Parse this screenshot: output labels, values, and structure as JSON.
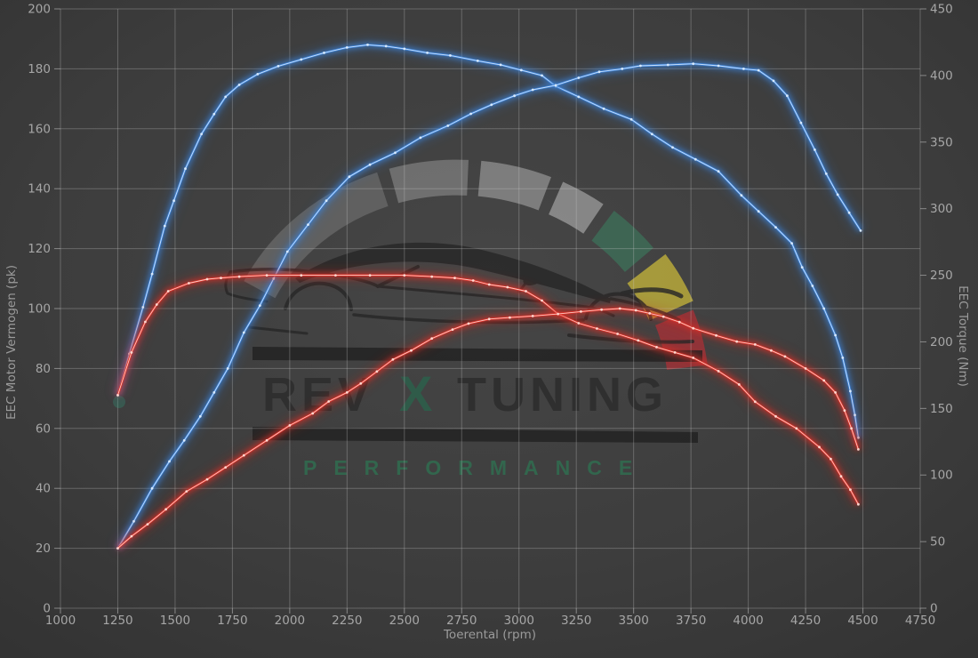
{
  "watermark": {
    "brand_rev": "REV",
    "brand_x": "X",
    "brand_tuning": "TUNING",
    "brand_sub": "PERFORMANCE"
  },
  "colors": {
    "background": "#3d3d3d",
    "grid": "#c8c8c8",
    "tick_text": "#a6a6a6",
    "blue": "#3f86dd",
    "blue_glow": "#2f6fc0",
    "blue_core": "#d9ebff",
    "red": "#e0322a",
    "red_glow": "#c02018",
    "red_core": "#ffdad3",
    "gauge_green": "#3d7159",
    "gauge_yellow": "#c8b73a",
    "gauge_red": "#aa3138",
    "logo_text": "#2d2d2d",
    "logo_green": "#2f7052"
  },
  "chart_data": {
    "type": "line",
    "title": "",
    "grid": true,
    "legend": "none",
    "axes": {
      "x": {
        "label": "Toerental (rpm)",
        "min": 1000,
        "max": 4750,
        "step": 250
      },
      "y_left": {
        "label": "EEC Motor Vermogen (pk)",
        "min": 0,
        "max": 200,
        "step": 20
      },
      "y_right": {
        "label": "EEC Torque (Nm)",
        "min": 0,
        "max": 450,
        "step": 50
      }
    },
    "series": [
      {
        "name": "tuned-torque-nm",
        "axis": "right",
        "color": "blue",
        "unit": "Nm",
        "points": [
          [
            1250,
            160
          ],
          [
            1300,
            191
          ],
          [
            1360,
            226
          ],
          [
            1400,
            251
          ],
          [
            1455,
            287
          ],
          [
            1495,
            306
          ],
          [
            1545,
            330
          ],
          [
            1615,
            356
          ],
          [
            1670,
            371
          ],
          [
            1720,
            384
          ],
          [
            1780,
            393
          ],
          [
            1860,
            401
          ],
          [
            1950,
            407
          ],
          [
            2050,
            412
          ],
          [
            2150,
            417
          ],
          [
            2250,
            421
          ],
          [
            2340,
            423
          ],
          [
            2420,
            422
          ],
          [
            2500,
            420
          ],
          [
            2600,
            417
          ],
          [
            2700,
            415
          ],
          [
            2820,
            411
          ],
          [
            2920,
            408
          ],
          [
            3010,
            404
          ],
          [
            3100,
            400
          ],
          [
            3160,
            392
          ],
          [
            3260,
            384
          ],
          [
            3370,
            375
          ],
          [
            3490,
            367
          ],
          [
            3580,
            356
          ],
          [
            3670,
            346
          ],
          [
            3770,
            337
          ],
          [
            3870,
            328
          ],
          [
            3970,
            310
          ],
          [
            4045,
            298
          ],
          [
            4120,
            286
          ],
          [
            4190,
            274
          ],
          [
            4235,
            256
          ],
          [
            4280,
            242
          ],
          [
            4330,
            225
          ],
          [
            4380,
            205
          ],
          [
            4412,
            188
          ],
          [
            4445,
            163
          ],
          [
            4465,
            145
          ],
          [
            4480,
            128
          ]
        ]
      },
      {
        "name": "tuned-power-pk",
        "axis": "left",
        "color": "blue",
        "unit": "pk",
        "points": [
          [
            1250,
            20
          ],
          [
            1320,
            29
          ],
          [
            1400,
            40
          ],
          [
            1475,
            49
          ],
          [
            1540,
            56
          ],
          [
            1610,
            64
          ],
          [
            1670,
            72
          ],
          [
            1730,
            80
          ],
          [
            1800,
            92
          ],
          [
            1870,
            101
          ],
          [
            1930,
            110
          ],
          [
            1990,
            119
          ],
          [
            2080,
            128
          ],
          [
            2160,
            136
          ],
          [
            2260,
            144
          ],
          [
            2350,
            148
          ],
          [
            2460,
            152
          ],
          [
            2570,
            157
          ],
          [
            2690,
            161
          ],
          [
            2790,
            165
          ],
          [
            2880,
            168
          ],
          [
            2980,
            171
          ],
          [
            3060,
            173
          ],
          [
            3160,
            174.5
          ],
          [
            3260,
            177
          ],
          [
            3350,
            179
          ],
          [
            3450,
            180
          ],
          [
            3530,
            181
          ],
          [
            3650,
            181.3
          ],
          [
            3760,
            181.7
          ],
          [
            3870,
            181
          ],
          [
            3980,
            180
          ],
          [
            4045,
            179.5
          ],
          [
            4110,
            176
          ],
          [
            4170,
            171
          ],
          [
            4230,
            162
          ],
          [
            4290,
            153
          ],
          [
            4340,
            145
          ],
          [
            4390,
            138
          ],
          [
            4440,
            132
          ],
          [
            4490,
            126
          ]
        ]
      },
      {
        "name": "stock-torque-nm",
        "axis": "right",
        "color": "red",
        "unit": "Nm",
        "points": [
          [
            1250,
            160
          ],
          [
            1310,
            192
          ],
          [
            1370,
            215
          ],
          [
            1420,
            228
          ],
          [
            1470,
            238
          ],
          [
            1560,
            244
          ],
          [
            1640,
            247
          ],
          [
            1700,
            248
          ],
          [
            1780,
            249
          ],
          [
            1900,
            250
          ],
          [
            2050,
            250
          ],
          [
            2200,
            250
          ],
          [
            2350,
            250
          ],
          [
            2500,
            250
          ],
          [
            2620,
            249
          ],
          [
            2720,
            248
          ],
          [
            2800,
            246
          ],
          [
            2870,
            243
          ],
          [
            2950,
            241
          ],
          [
            3030,
            238
          ],
          [
            3100,
            231
          ],
          [
            3170,
            221
          ],
          [
            3260,
            214
          ],
          [
            3340,
            210
          ],
          [
            3430,
            206
          ],
          [
            3520,
            201
          ],
          [
            3600,
            196
          ],
          [
            3680,
            192
          ],
          [
            3760,
            188
          ],
          [
            3870,
            178
          ],
          [
            3960,
            168
          ],
          [
            4030,
            155
          ],
          [
            4120,
            144
          ],
          [
            4210,
            135
          ],
          [
            4310,
            121
          ],
          [
            4360,
            112
          ],
          [
            4405,
            99
          ],
          [
            4445,
            89
          ],
          [
            4480,
            78
          ]
        ]
      },
      {
        "name": "stock-power-pk",
        "axis": "left",
        "color": "red",
        "unit": "pk",
        "points": [
          [
            1250,
            20
          ],
          [
            1310,
            24
          ],
          [
            1380,
            28
          ],
          [
            1460,
            33
          ],
          [
            1550,
            39
          ],
          [
            1640,
            43
          ],
          [
            1720,
            47
          ],
          [
            1800,
            51
          ],
          [
            1900,
            56
          ],
          [
            2000,
            61
          ],
          [
            2100,
            65
          ],
          [
            2170,
            69
          ],
          [
            2250,
            72
          ],
          [
            2310,
            75
          ],
          [
            2380,
            79
          ],
          [
            2450,
            83
          ],
          [
            2530,
            86
          ],
          [
            2620,
            90
          ],
          [
            2710,
            93
          ],
          [
            2780,
            95
          ],
          [
            2870,
            96.5
          ],
          [
            2960,
            97
          ],
          [
            3060,
            97.5
          ],
          [
            3170,
            98.2
          ],
          [
            3270,
            99
          ],
          [
            3360,
            99.6
          ],
          [
            3440,
            100
          ],
          [
            3510,
            99.4
          ],
          [
            3570,
            98.4
          ],
          [
            3630,
            97.3
          ],
          [
            3700,
            95.5
          ],
          [
            3760,
            93.4
          ],
          [
            3860,
            91
          ],
          [
            3950,
            89
          ],
          [
            4030,
            88
          ],
          [
            4100,
            86
          ],
          [
            4160,
            84
          ],
          [
            4250,
            80
          ],
          [
            4330,
            76
          ],
          [
            4380,
            72
          ],
          [
            4420,
            66
          ],
          [
            4450,
            60
          ],
          [
            4480,
            53
          ]
        ]
      }
    ]
  }
}
